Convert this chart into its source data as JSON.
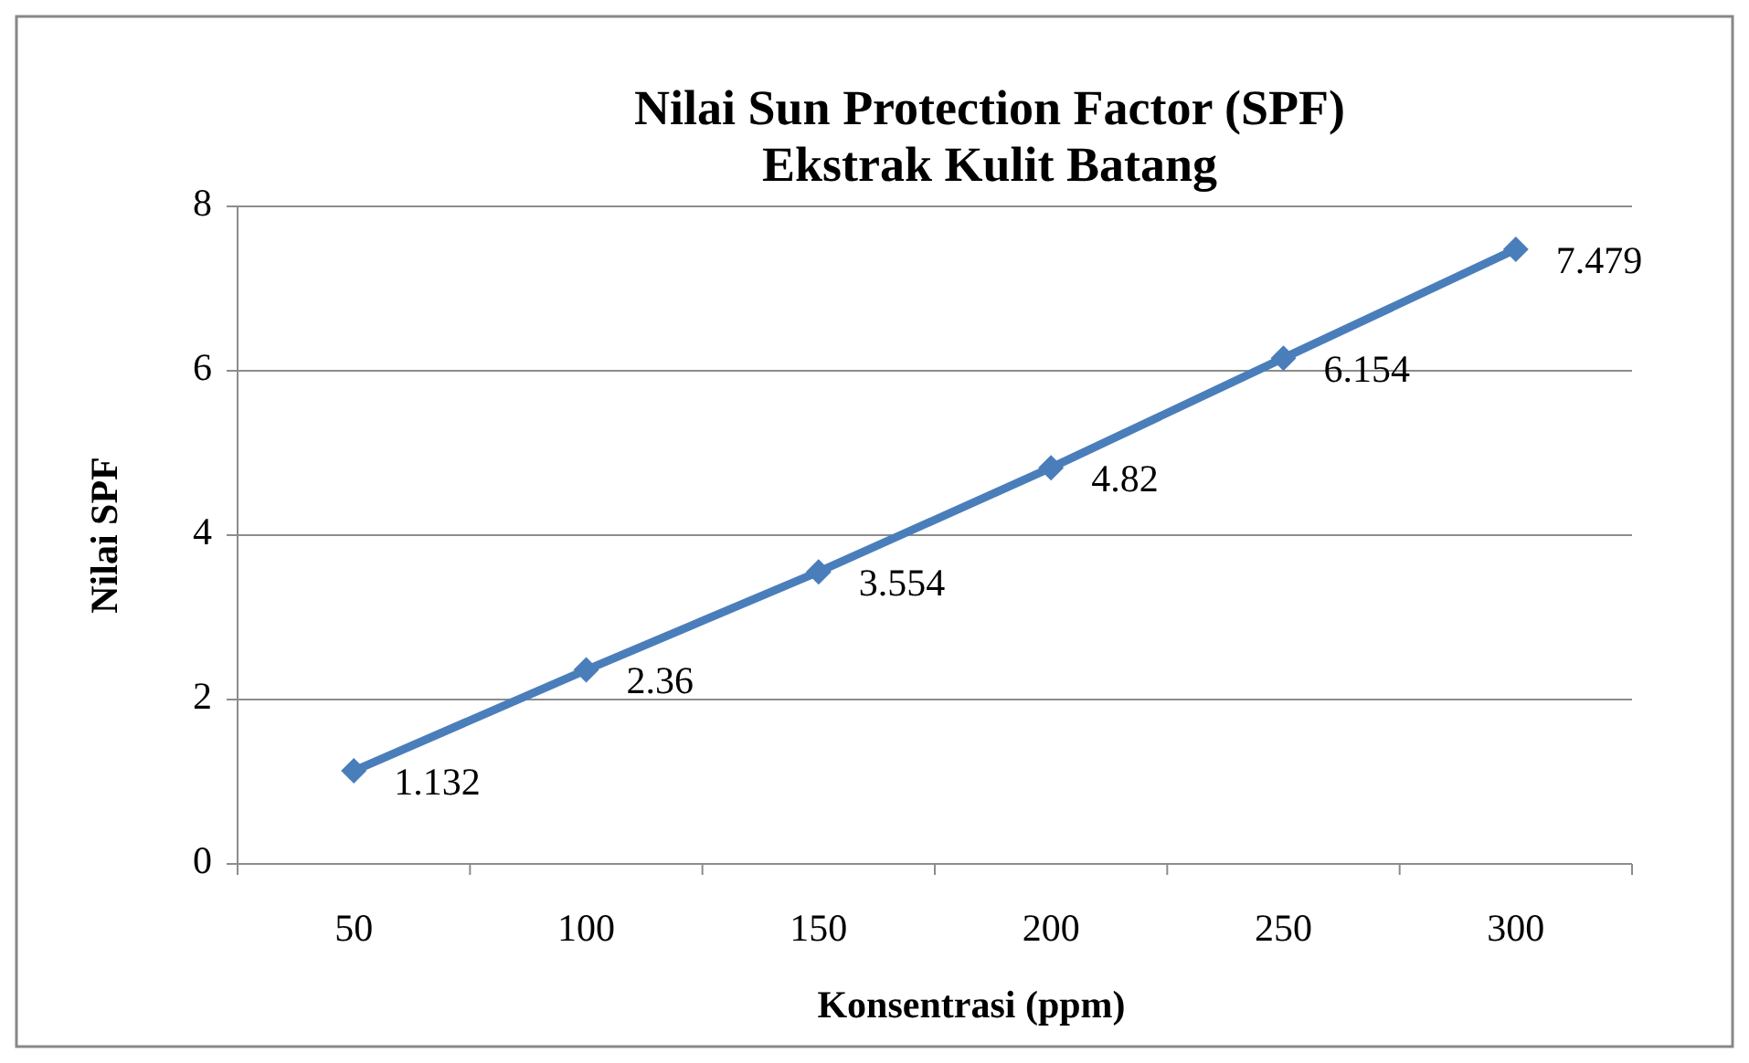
{
  "chart_data": {
    "type": "line",
    "title": "Nilai Sun Protection Factor (SPF)\nEkstrak Kulit Batang",
    "xlabel": "Konsentrasi (ppm)",
    "ylabel": "Nilai SPF",
    "categories": [
      "50",
      "100",
      "150",
      "200",
      "250",
      "300"
    ],
    "series": [
      {
        "color": "#4a7ebb",
        "values": [
          1.132,
          2.36,
          3.554,
          4.82,
          6.154,
          7.479
        ]
      }
    ],
    "ylim": [
      0,
      8
    ],
    "yticks": [
      0,
      2,
      4,
      6,
      8
    ],
    "grid": "y",
    "marker": "diamond",
    "data_labels": true,
    "line_style": "solid"
  }
}
